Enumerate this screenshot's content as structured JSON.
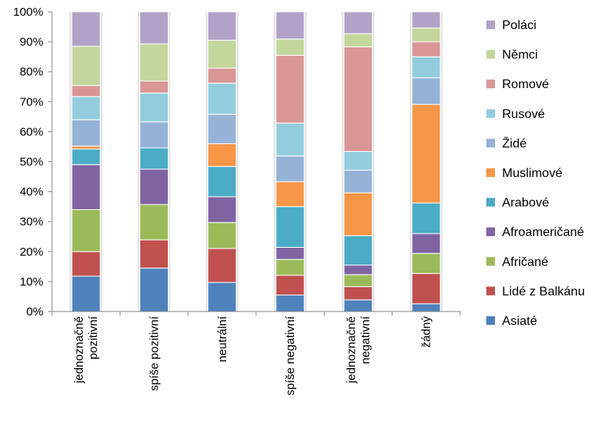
{
  "chart_data": {
    "type": "bar",
    "stacked": true,
    "normalized": true,
    "categories": [
      "jednoznačně pozitivní",
      "spíše pozitivní",
      "neutrální",
      "spíše negativní",
      "jednoznačně negativní",
      "žádný"
    ],
    "category_lines": [
      [
        "jednoznačně",
        "pozitivní"
      ],
      [
        "spíše pozitivní"
      ],
      [
        "neutrální"
      ],
      [
        "spíše negativní"
      ],
      [
        "jednoznačně",
        "negativní"
      ],
      [
        "žádný"
      ]
    ],
    "ylim": [
      0,
      100
    ],
    "yticks": [
      "0%",
      "10%",
      "20%",
      "30%",
      "40%",
      "50%",
      "60%",
      "70%",
      "80%",
      "90%",
      "100%"
    ],
    "grid": false,
    "legend_position": "right",
    "series": [
      {
        "name": "Asiaté",
        "color": "#4f81bd",
        "values": [
          11.8,
          14.5,
          9.7,
          5.5,
          3.9,
          2.6
        ]
      },
      {
        "name": "Lidé z Balkánu",
        "color": "#c0504d",
        "values": [
          8.2,
          9.4,
          11.3,
          6.6,
          4.4,
          10.1
        ]
      },
      {
        "name": "Afričané",
        "color": "#9bbb59",
        "values": [
          14,
          11.8,
          8.7,
          5.3,
          4,
          6.7
        ]
      },
      {
        "name": "Afroameričané",
        "color": "#8064a2",
        "values": [
          15,
          11.8,
          8.6,
          4,
          3.2,
          6.6
        ]
      },
      {
        "name": "Arabové",
        "color": "#4bacc6",
        "values": [
          5.2,
          7.1,
          10.1,
          13.6,
          9.8,
          10.2
        ]
      },
      {
        "name": "Muslimové",
        "color": "#f79646",
        "values": [
          1,
          0,
          7.6,
          8.3,
          14.3,
          32.9
        ]
      },
      {
        "name": "Židé",
        "color": "#95b3d7",
        "values": [
          8.8,
          8.7,
          9.8,
          8.6,
          7.6,
          8.9
        ]
      },
      {
        "name": "Rusové",
        "color": "#93cddd",
        "values": [
          7.7,
          9.6,
          10.4,
          11,
          6.2,
          7
        ]
      },
      {
        "name": "Romové",
        "color": "#d99694",
        "values": [
          3.7,
          4,
          5,
          22.6,
          34.9,
          5
        ]
      },
      {
        "name": "Němci",
        "color": "#c3d69b",
        "values": [
          13.1,
          12.4,
          9.3,
          5.4,
          4.4,
          4.6
        ]
      },
      {
        "name": "Poláci",
        "color": "#b2a2c7",
        "values": [
          11.5,
          10.7,
          9.5,
          9.1,
          7.3,
          5.4
        ]
      }
    ]
  }
}
